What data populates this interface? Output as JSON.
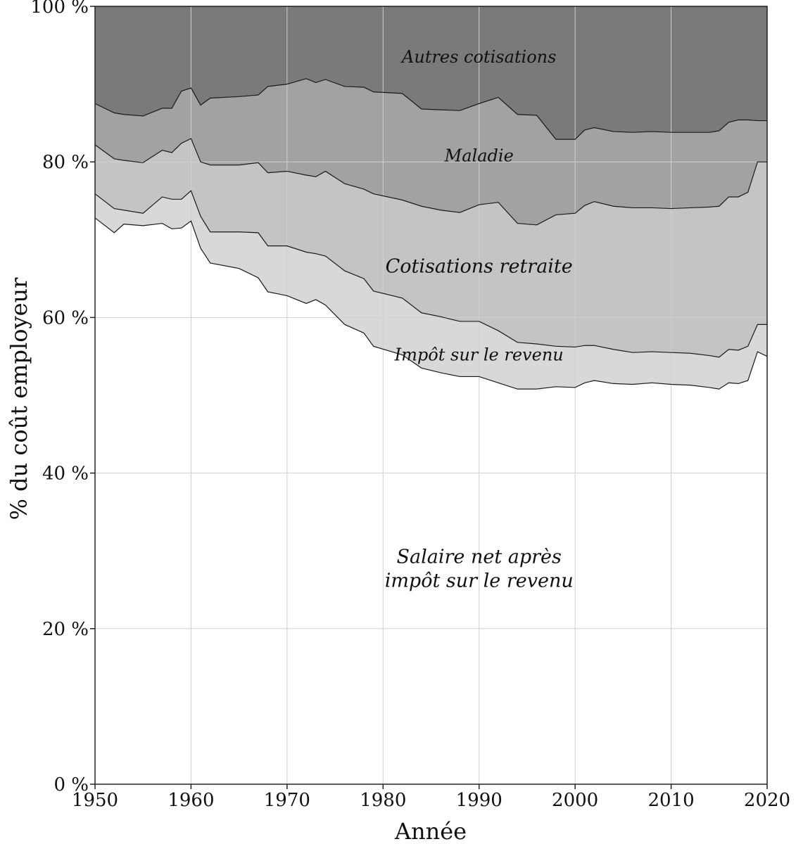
{
  "chart_data": {
    "type": "area",
    "stacked": true,
    "xlabel": "Année",
    "ylabel": "% du coût employeur",
    "xlim": [
      1950,
      2020
    ],
    "ylim": [
      0,
      100
    ],
    "grid": true,
    "x": [
      1950,
      1952,
      1953,
      1955,
      1957,
      1958,
      1959,
      1960,
      1961,
      1962,
      1965,
      1967,
      1968,
      1970,
      1972,
      1973,
      1974,
      1976,
      1978,
      1979,
      1982,
      1984,
      1986,
      1988,
      1990,
      1992,
      1994,
      1996,
      1998,
      2000,
      2001,
      2002,
      2004,
      2006,
      2008,
      2010,
      2012,
      2014,
      2015,
      2016,
      2017,
      2018,
      2019,
      2020
    ],
    "boundaries": [
      {
        "name": "net_top",
        "values": [
          72.8,
          70.9,
          72.0,
          71.8,
          72.1,
          71.4,
          71.5,
          72.4,
          68.9,
          67.0,
          66.3,
          65.1,
          63.3,
          62.8,
          61.8,
          62.3,
          61.6,
          59.1,
          58.0,
          56.3,
          55.2,
          53.5,
          52.9,
          52.4,
          52.4,
          51.6,
          50.8,
          50.8,
          51.1,
          51.0,
          51.6,
          51.9,
          51.5,
          51.4,
          51.6,
          51.4,
          51.3,
          51.0,
          50.8,
          51.6,
          51.5,
          51.9,
          55.6,
          55.0
        ]
      },
      {
        "name": "impot_top",
        "values": [
          75.9,
          74.0,
          73.8,
          73.4,
          75.5,
          75.2,
          75.2,
          76.3,
          73.0,
          71.0,
          71.0,
          70.9,
          69.2,
          69.2,
          68.4,
          68.2,
          67.9,
          66.0,
          65.0,
          63.4,
          62.5,
          60.6,
          60.1,
          59.5,
          59.5,
          58.3,
          56.8,
          56.6,
          56.3,
          56.2,
          56.4,
          56.4,
          55.9,
          55.5,
          55.6,
          55.5,
          55.4,
          55.1,
          54.9,
          55.9,
          55.8,
          56.3,
          59.1,
          59.1
        ]
      },
      {
        "name": "retraite_top",
        "values": [
          82.2,
          80.4,
          80.2,
          79.9,
          81.5,
          81.2,
          82.4,
          83.0,
          80.0,
          79.6,
          79.6,
          79.9,
          78.6,
          78.8,
          78.3,
          78.1,
          78.8,
          77.2,
          76.5,
          75.9,
          75.1,
          74.3,
          73.8,
          73.5,
          74.5,
          74.8,
          72.1,
          71.9,
          73.2,
          73.4,
          74.4,
          74.9,
          74.3,
          74.1,
          74.1,
          74.0,
          74.1,
          74.2,
          74.3,
          75.5,
          75.5,
          76.1,
          80.0,
          80.0
        ]
      },
      {
        "name": "maladie_top",
        "values": [
          87.5,
          86.3,
          86.1,
          85.9,
          86.9,
          86.9,
          89.1,
          89.5,
          87.3,
          88.2,
          88.4,
          88.6,
          89.7,
          90.0,
          90.7,
          90.2,
          90.6,
          89.7,
          89.6,
          89.0,
          88.8,
          86.8,
          86.7,
          86.6,
          87.5,
          88.3,
          86.1,
          86.0,
          82.9,
          82.9,
          84.1,
          84.4,
          83.9,
          83.8,
          83.9,
          83.8,
          83.8,
          83.8,
          84.0,
          85.1,
          85.4,
          85.4,
          85.3,
          85.3
        ]
      }
    ],
    "series": [
      {
        "label": "Salaire net après",
        "label2": "impôt sur le revenu",
        "from": null,
        "to": "net_top",
        "color": "#ffffff",
        "label_x": 1990,
        "label_y": 27.0
      },
      {
        "label": "Impôt sur le revenu",
        "from": "net_top",
        "to": "impot_top",
        "color": "#d8d8d8",
        "label_x": 1990,
        "label_y": 55.2
      },
      {
        "label": "Cotisations retraite",
        "from": "impot_top",
        "to": "retraite_top",
        "color": "#c4c4c4",
        "label_x": 1990,
        "label_y": 66.5
      },
      {
        "label": "Maladie",
        "from": "retraite_top",
        "to": "maladie_top",
        "color": "#a2a2a2",
        "label_x": 1990,
        "label_y": 80.8
      },
      {
        "label": "Autres cotisations",
        "from": "maladie_top",
        "to": null,
        "color": "#7a7a7a",
        "label_x": 1990,
        "label_y": 93.5
      }
    ],
    "xticks": [
      1950,
      1960,
      1970,
      1980,
      1990,
      2000,
      2010,
      2020
    ],
    "xtick_labels": [
      "1950",
      "1960",
      "1970",
      "1980",
      "1990",
      "2000",
      "2010",
      "2020"
    ],
    "yticks": [
      0,
      20,
      40,
      60,
      80,
      100
    ],
    "ytick_labels": [
      "0 %",
      "20 %",
      "40 %",
      "60 %",
      "80 %",
      "100 %"
    ]
  }
}
